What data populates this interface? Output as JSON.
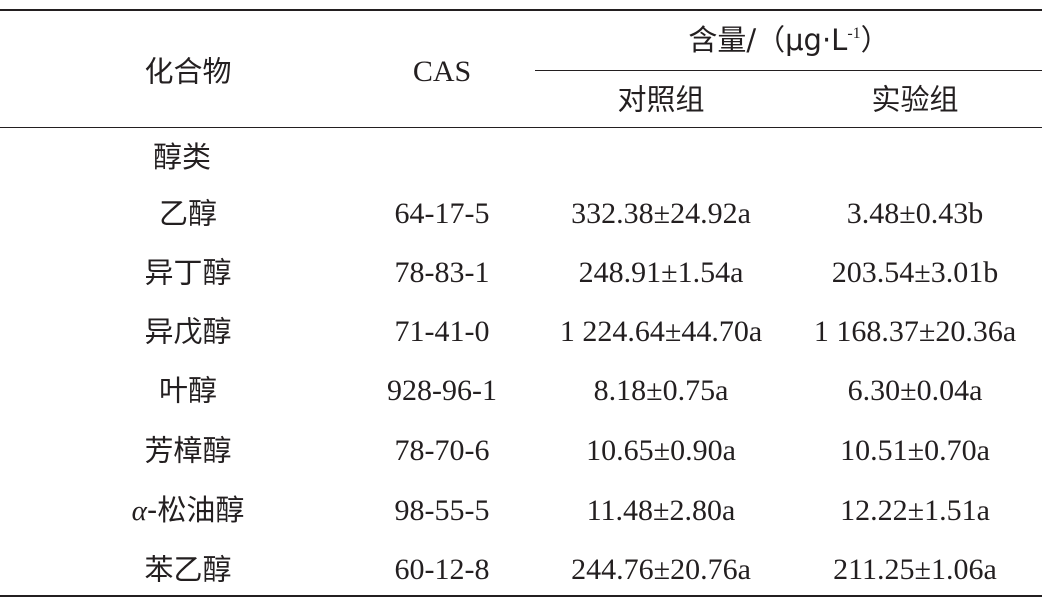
{
  "header": {
    "compound": "化合物",
    "cas": "CAS",
    "content_prefix": "含量/（μg·L",
    "content_sup": "-1",
    "content_suffix": "）",
    "control": "对照组",
    "experimental": "实验组"
  },
  "group": {
    "label": "醇类"
  },
  "rows": [
    {
      "compound": "乙醇",
      "cas": "64-17-5",
      "control": "332.38±24.92a",
      "experimental": "3.48±0.43b"
    },
    {
      "compound": "异丁醇",
      "cas": "78-83-1",
      "control": "248.91±1.54a",
      "experimental": "203.54±3.01b"
    },
    {
      "compound": "异戊醇",
      "cas": "71-41-0",
      "control": "1 224.64±44.70a",
      "experimental": "1 168.37±20.36a"
    },
    {
      "compound": "叶醇",
      "cas": "928-96-1",
      "control": "8.18±0.75a",
      "experimental": "6.30±0.04a"
    },
    {
      "compound": "芳樟醇",
      "cas": "78-70-6",
      "control": "10.65±0.90a",
      "experimental": "10.51±0.70a"
    },
    {
      "compound_prefix": "α",
      "compound": "-松油醇",
      "cas": "98-55-5",
      "control": "11.48±2.80a",
      "experimental": "12.22±1.51a"
    },
    {
      "compound": "苯乙醇",
      "cas": "60-12-8",
      "control": "244.76±20.76a",
      "experimental": "211.25±1.06a"
    }
  ]
}
